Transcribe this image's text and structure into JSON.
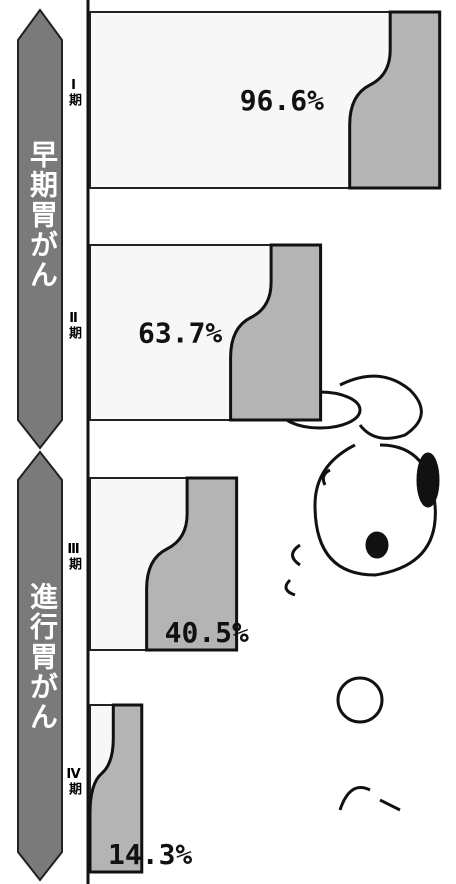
{
  "chart_data": {
    "type": "bar",
    "orientation": "horizontal",
    "groups": [
      {
        "label": "早期胃がん",
        "categories": [
          0,
          1
        ]
      },
      {
        "label": "進行胃がん",
        "categories": [
          2,
          3
        ]
      }
    ],
    "categories": [
      "Ⅰ期",
      "Ⅱ期",
      "Ⅲ期",
      "Ⅳ期"
    ],
    "values": [
      96.6,
      63.7,
      40.5,
      14.3
    ],
    "value_labels": [
      "96.6%",
      "63.7%",
      "40.5%",
      "14.3%"
    ],
    "xlim": [
      0,
      100
    ],
    "color": "#b4b4b4"
  }
}
